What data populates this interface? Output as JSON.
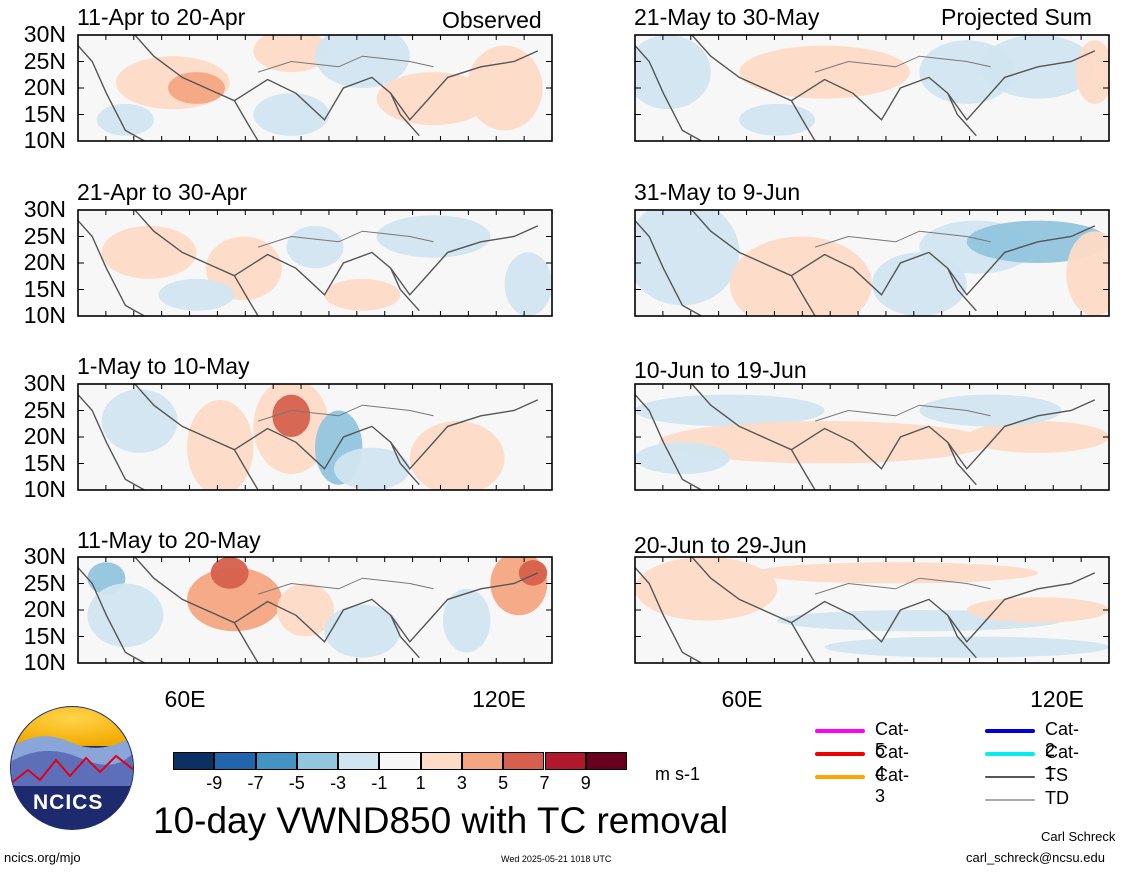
{
  "header": {
    "left_corner": "Observed",
    "right_corner": "Projected Sum"
  },
  "panels": [
    {
      "title": "11-Apr to 20-Apr",
      "column": "observed"
    },
    {
      "title": "21-Apr to 30-Apr",
      "column": "observed"
    },
    {
      "title": "1-May to 10-May",
      "column": "observed"
    },
    {
      "title": "11-May to 20-May",
      "column": "observed"
    },
    {
      "title": "21-May to 30-May",
      "column": "projected"
    },
    {
      "title": "31-May to 9-Jun",
      "column": "projected"
    },
    {
      "title": "10-Jun to 19-Jun",
      "column": "projected"
    },
    {
      "title": "20-Jun to 29-Jun",
      "column": "projected"
    }
  ],
  "chart_data": {
    "type": "heatmap",
    "title": "10-day VWND850 with TC removal",
    "variable": "850 hPa meridional wind anomaly",
    "units": "m s-1",
    "y_ticks": [
      "30N",
      "25N",
      "20N",
      "15N",
      "10N"
    ],
    "x_ticks": [
      "60E",
      "120E"
    ],
    "x_range": [
      45,
      130
    ],
    "y_range": [
      10,
      30
    ],
    "contour_levels": [
      "-9",
      "-7",
      "-5",
      "-3",
      "-1",
      "1",
      "3",
      "5",
      "7",
      "9"
    ],
    "colorbar_colors": [
      "#0a3161",
      "#2166ac",
      "#4393c3",
      "#92c5de",
      "#d1e5f0",
      "#f7f7f7",
      "#fddbc7",
      "#f4a582",
      "#d6604d",
      "#b2182b",
      "#67001f"
    ]
  },
  "tc_legend": [
    {
      "label": "Cat-5",
      "color": "#ff00ff"
    },
    {
      "label": "Cat-4",
      "color": "#ee0000"
    },
    {
      "label": "Cat-3",
      "color": "#ffa500"
    },
    {
      "label": "Cat-2",
      "color": "#0000dd"
    },
    {
      "label": "Cat-1",
      "color": "#00eeee"
    },
    {
      "label": "TS",
      "color": "#555555"
    },
    {
      "label": "TD",
      "color": "#aaaaaa"
    }
  ],
  "logo": {
    "text": "NCICS"
  },
  "footer": {
    "left": "ncics.org/mjo",
    "center": "Wed 2025-05-21 1018 UTC",
    "author": "Carl Schreck",
    "email": "carl_schreck@ncsu.edu"
  }
}
